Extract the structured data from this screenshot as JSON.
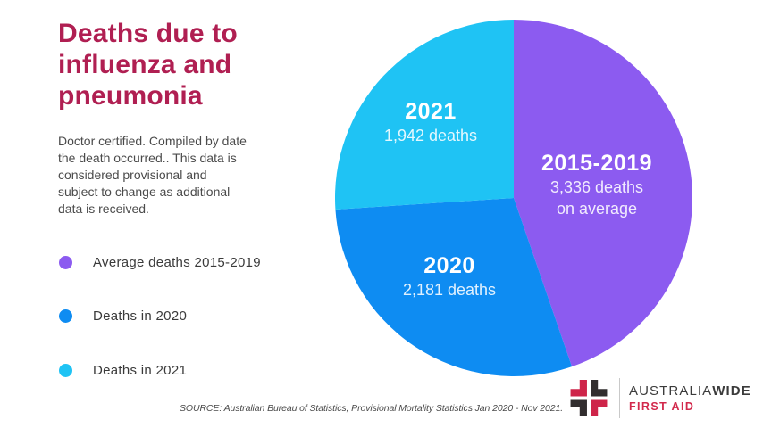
{
  "page": {
    "background": "#ffffff"
  },
  "header": {
    "title": "Deaths due to influenza and pneumonia",
    "title_color": "#B01F52"
  },
  "description": "Doctor certified. Compiled by date the death occurred.. This data is considered provisional and subject to change as additional data is received.",
  "legend": {
    "items": [
      {
        "label": "Average deaths 2015-2019",
        "color": "#8C5BF0"
      },
      {
        "label": "Deaths in 2020",
        "color": "#0E8CF2"
      },
      {
        "label": "Deaths in 2021",
        "color": "#1FC3F4"
      }
    ]
  },
  "chart_data": {
    "type": "pie",
    "title": "Deaths due to influenza and pneumonia",
    "direction": "clockwise",
    "start_angle_deg": 0,
    "legend_position": "left",
    "slices": [
      {
        "label": "2015-2019",
        "value": 3336,
        "color": "#8C5BF0",
        "sublines": [
          "3,336 deaths",
          "on average"
        ],
        "legend": "Average deaths 2015-2019"
      },
      {
        "label": "2020",
        "value": 2181,
        "color": "#0E8CF2",
        "sublines": [
          "2,181 deaths"
        ],
        "legend": "Deaths in 2020"
      },
      {
        "label": "2021",
        "value": 1942,
        "color": "#1FC3F4",
        "sublines": [
          "1,942 deaths"
        ],
        "legend": "Deaths in 2021"
      }
    ]
  },
  "source": "SOURCE: Australian Bureau of Statistics, Provisional Mortality Statistics Jan 2020 - Nov 2021.",
  "logo": {
    "name_regular": "AUSTRALIA",
    "name_bold": "WIDE",
    "tagline": "FIRST AID",
    "red": "#CE2449",
    "dark": "#312D2E"
  }
}
